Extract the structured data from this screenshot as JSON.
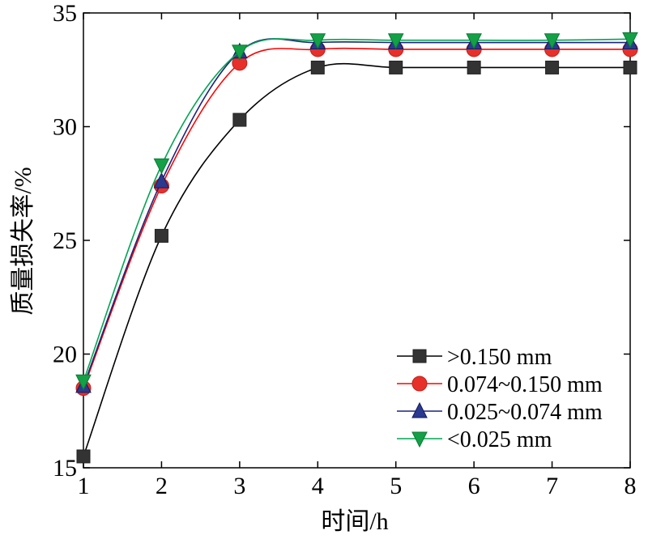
{
  "chart_data": {
    "type": "line",
    "xlabel": "时间/h",
    "ylabel": "质量损失率/%",
    "x": [
      1,
      2,
      3,
      4,
      5,
      6,
      7,
      8
    ],
    "xlim": [
      1,
      8
    ],
    "ylim": [
      15,
      35
    ],
    "xticks": [
      "1",
      "2",
      "3",
      "4",
      "5",
      "6",
      "7",
      "8"
    ],
    "yticks": [
      "15",
      "20",
      "25",
      "30",
      "35"
    ],
    "grid": false,
    "legend_position": "bottom-right",
    "series": [
      {
        "name": ">0.150 mm",
        "marker": "square",
        "color": "#000000",
        "marker_color": "#333333",
        "values": [
          15.5,
          25.2,
          30.3,
          32.6,
          32.6,
          32.6,
          32.6,
          32.6
        ]
      },
      {
        "name": "0.074~0.150 mm",
        "marker": "circle",
        "color": "#ff0000",
        "marker_color": "#e8302a",
        "values": [
          18.5,
          27.4,
          32.8,
          33.4,
          33.4,
          33.4,
          33.4,
          33.4
        ]
      },
      {
        "name": "0.025~0.074 mm",
        "marker": "triangle-up",
        "color": "#1a237e",
        "marker_color": "#2b3a8f",
        "values": [
          18.6,
          27.6,
          33.3,
          33.7,
          33.7,
          33.7,
          33.7,
          33.7
        ]
      },
      {
        "name": "<0.025 mm",
        "marker": "triangle-down",
        "color": "#00a651",
        "marker_color": "#14a046",
        "values": [
          18.8,
          28.3,
          33.3,
          33.8,
          33.8,
          33.8,
          33.8,
          33.85
        ]
      }
    ]
  }
}
